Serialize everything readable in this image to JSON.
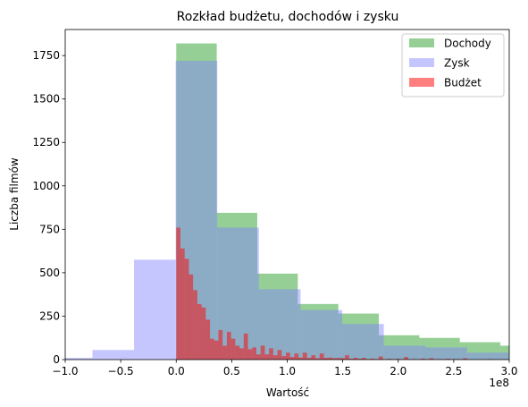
{
  "chart_data": {
    "type": "histogram",
    "title": "Rozkład budżetu, dochodów i zysku",
    "xlabel": "Wartość",
    "ylabel": "Liczba filmów",
    "x_offset_label": "1e8",
    "xlim": [
      -1.0,
      3.0
    ],
    "ylim": [
      0,
      1900
    ],
    "x_unit_scale": 100000000,
    "xticks": [
      -1.0,
      -0.5,
      0.0,
      0.5,
      1.0,
      1.5,
      2.0,
      2.5,
      3.0
    ],
    "xtick_labels": [
      "−1.0",
      "−0.5",
      "0.0",
      "0.5",
      "1.0",
      "1.5",
      "2.0",
      "2.5",
      "3.0"
    ],
    "yticks": [
      0,
      250,
      500,
      750,
      1000,
      1250,
      1500,
      1750
    ],
    "ytick_labels": [
      "0",
      "250",
      "500",
      "750",
      "1000",
      "1250",
      "1500",
      "1750"
    ],
    "legend_position": "top-right",
    "grid": false,
    "series": [
      {
        "name": "Dochody",
        "color": "#2ca02c",
        "alpha": 0.5,
        "bin_width": 0.365,
        "bin_edges_start": 0.0,
        "values": [
          1820,
          845,
          495,
          320,
          265,
          140,
          125,
          100,
          80
        ]
      },
      {
        "name": "Zysk",
        "color": "#8080ff",
        "alpha": 0.45,
        "bin_width": 0.375,
        "bin_edges_start": -1.13,
        "values": [
          10,
          55,
          575,
          1720,
          760,
          405,
          285,
          205,
          80,
          70,
          40
        ]
      },
      {
        "name": "Budżet",
        "color": "#ff0000",
        "alpha": 0.5,
        "bin_width": 0.038,
        "bin_edges_start": 0.0,
        "values": [
          760,
          640,
          580,
          490,
          400,
          320,
          300,
          230,
          120,
          110,
          170,
          80,
          160,
          120,
          80,
          65,
          150,
          60,
          70,
          30,
          80,
          30,
          65,
          25,
          55,
          20,
          40,
          15,
          35,
          12,
          40,
          10,
          25,
          8,
          35,
          10,
          12,
          8,
          10,
          8,
          25,
          5,
          10,
          5,
          10,
          3,
          6,
          3,
          18,
          2,
          5,
          2,
          4,
          2,
          15,
          2,
          3,
          2,
          6,
          2,
          8,
          1,
          3,
          1,
          5,
          1,
          3,
          1,
          8,
          1,
          1,
          1,
          2,
          1,
          3,
          1,
          1,
          1,
          2
        ]
      }
    ]
  }
}
